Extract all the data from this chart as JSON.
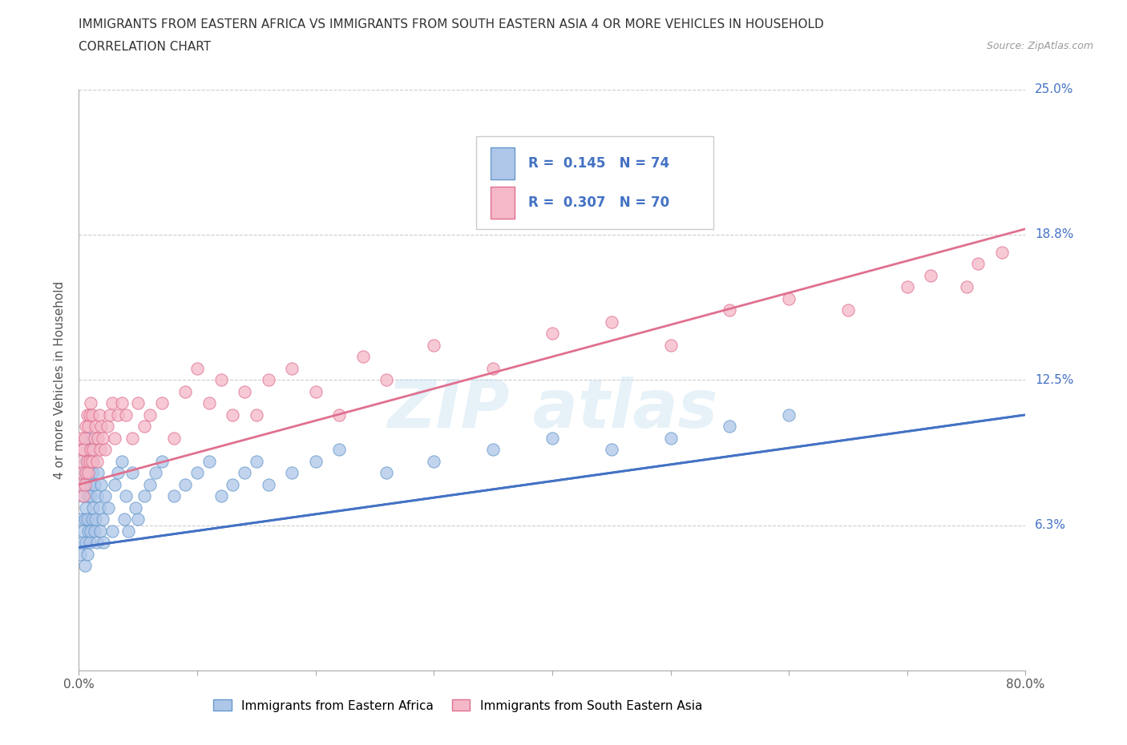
{
  "title_line1": "IMMIGRANTS FROM EASTERN AFRICA VS IMMIGRANTS FROM SOUTH EASTERN ASIA 4 OR MORE VEHICLES IN HOUSEHOLD",
  "title_line2": "CORRELATION CHART",
  "source_text": "Source: ZipAtlas.com",
  "ylabel": "4 or more Vehicles in Household",
  "xlim": [
    0.0,
    0.8
  ],
  "ylim": [
    0.0,
    0.25
  ],
  "xtick_positions": [
    0.0,
    0.1,
    0.2,
    0.3,
    0.4,
    0.5,
    0.6,
    0.7,
    0.8
  ],
  "xticklabels_show": [
    "0.0%",
    "",
    "",
    "",
    "",
    "",
    "",
    "",
    "80.0%"
  ],
  "yticks": [
    0.0625,
    0.125,
    0.1875,
    0.25
  ],
  "yticklabels": [
    "6.3%",
    "12.5%",
    "18.8%",
    "25.0%"
  ],
  "grid_color": "#cccccc",
  "background_color": "#ffffff",
  "series1_name": "Immigrants from Eastern Africa",
  "series1_color": "#aec6e8",
  "series1_edge_color": "#6699cc",
  "series1_R": 0.145,
  "series1_N": 74,
  "series1_line_color": "#4472c4",
  "series1_line_style": "-",
  "series2_name": "Immigrants from South Eastern Asia",
  "series2_color": "#f4b8c8",
  "series2_edge_color": "#e07090",
  "series2_R": 0.307,
  "series2_N": 70,
  "series2_line_color": "#e07090",
  "series2_line_style": "-",
  "legend_R_color": "#4472c4",
  "series1_x": [
    0.001,
    0.002,
    0.003,
    0.003,
    0.004,
    0.004,
    0.005,
    0.005,
    0.005,
    0.006,
    0.006,
    0.006,
    0.007,
    0.007,
    0.007,
    0.008,
    0.008,
    0.008,
    0.009,
    0.009,
    0.01,
    0.01,
    0.01,
    0.011,
    0.011,
    0.012,
    0.012,
    0.013,
    0.013,
    0.014,
    0.015,
    0.015,
    0.016,
    0.017,
    0.018,
    0.019,
    0.02,
    0.021,
    0.022,
    0.025,
    0.028,
    0.03,
    0.033,
    0.036,
    0.038,
    0.04,
    0.042,
    0.045,
    0.048,
    0.05,
    0.055,
    0.06,
    0.065,
    0.07,
    0.08,
    0.09,
    0.1,
    0.11,
    0.12,
    0.13,
    0.14,
    0.15,
    0.16,
    0.18,
    0.2,
    0.22,
    0.26,
    0.3,
    0.35,
    0.4,
    0.45,
    0.5,
    0.55,
    0.6
  ],
  "series1_y": [
    0.05,
    0.065,
    0.055,
    0.075,
    0.06,
    0.08,
    0.045,
    0.065,
    0.085,
    0.055,
    0.07,
    0.09,
    0.05,
    0.065,
    0.085,
    0.06,
    0.075,
    0.1,
    0.055,
    0.08,
    0.06,
    0.075,
    0.095,
    0.065,
    0.085,
    0.07,
    0.09,
    0.06,
    0.08,
    0.065,
    0.055,
    0.075,
    0.085,
    0.07,
    0.06,
    0.08,
    0.065,
    0.055,
    0.075,
    0.07,
    0.06,
    0.08,
    0.085,
    0.09,
    0.065,
    0.075,
    0.06,
    0.085,
    0.07,
    0.065,
    0.075,
    0.08,
    0.085,
    0.09,
    0.075,
    0.08,
    0.085,
    0.09,
    0.075,
    0.08,
    0.085,
    0.09,
    0.08,
    0.085,
    0.09,
    0.095,
    0.085,
    0.09,
    0.095,
    0.1,
    0.095,
    0.1,
    0.105,
    0.11
  ],
  "series2_x": [
    0.001,
    0.002,
    0.002,
    0.003,
    0.003,
    0.004,
    0.004,
    0.005,
    0.005,
    0.006,
    0.006,
    0.007,
    0.007,
    0.008,
    0.008,
    0.009,
    0.009,
    0.01,
    0.01,
    0.011,
    0.011,
    0.012,
    0.013,
    0.014,
    0.015,
    0.016,
    0.017,
    0.018,
    0.019,
    0.02,
    0.022,
    0.024,
    0.026,
    0.028,
    0.03,
    0.033,
    0.036,
    0.04,
    0.045,
    0.05,
    0.055,
    0.06,
    0.07,
    0.08,
    0.09,
    0.1,
    0.11,
    0.12,
    0.13,
    0.14,
    0.15,
    0.16,
    0.18,
    0.2,
    0.22,
    0.24,
    0.26,
    0.3,
    0.35,
    0.4,
    0.45,
    0.5,
    0.55,
    0.6,
    0.65,
    0.7,
    0.72,
    0.75,
    0.76,
    0.78
  ],
  "series2_y": [
    0.08,
    0.09,
    0.1,
    0.085,
    0.095,
    0.075,
    0.095,
    0.08,
    0.1,
    0.085,
    0.105,
    0.09,
    0.11,
    0.085,
    0.105,
    0.09,
    0.11,
    0.095,
    0.115,
    0.09,
    0.11,
    0.095,
    0.1,
    0.105,
    0.09,
    0.1,
    0.11,
    0.095,
    0.105,
    0.1,
    0.095,
    0.105,
    0.11,
    0.115,
    0.1,
    0.11,
    0.115,
    0.11,
    0.1,
    0.115,
    0.105,
    0.11,
    0.115,
    0.1,
    0.12,
    0.13,
    0.115,
    0.125,
    0.11,
    0.12,
    0.11,
    0.125,
    0.13,
    0.12,
    0.11,
    0.135,
    0.125,
    0.14,
    0.13,
    0.145,
    0.15,
    0.14,
    0.155,
    0.16,
    0.155,
    0.165,
    0.17,
    0.165,
    0.175,
    0.18
  ],
  "series1_line_x0": 0.0,
  "series1_line_y0": 0.053,
  "series1_line_x1": 0.8,
  "series1_line_y1": 0.11,
  "series2_line_x0": 0.0,
  "series2_line_y0": 0.08,
  "series2_line_x1": 0.8,
  "series2_line_y1": 0.19
}
